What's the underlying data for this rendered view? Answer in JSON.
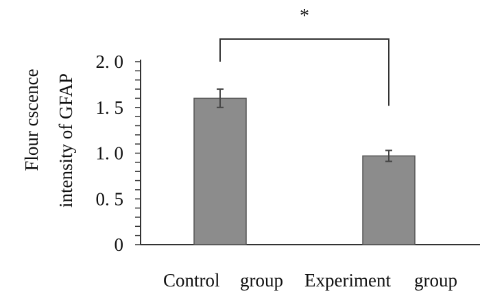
{
  "chart_data": {
    "type": "bar",
    "title": "",
    "xlabel": "",
    "ylabel_lines": [
      "Flour cscence",
      "intensity of GFAP"
    ],
    "categories": [
      "Control group",
      "Experiment group"
    ],
    "category_label_parts": [
      [
        "Control",
        "group"
      ],
      [
        "Experiment",
        "group"
      ]
    ],
    "values": [
      1.6,
      0.97
    ],
    "errors": [
      0.1,
      0.06
    ],
    "ylim": [
      0,
      2.0
    ],
    "major_ticks": [
      0,
      0.5,
      1.0,
      1.5,
      2.0
    ],
    "tick_labels": [
      "0",
      "0. 5",
      "1. 0",
      "1. 5",
      "2. 0"
    ],
    "minor_tick_step": 0.1,
    "grid": false,
    "significance": {
      "marker": "*",
      "between": [
        0,
        1
      ]
    },
    "colors": {
      "bar_fill": "#8c8c8c",
      "bar_edge": "#555555",
      "axis": "#333333",
      "text": "#111111"
    }
  }
}
